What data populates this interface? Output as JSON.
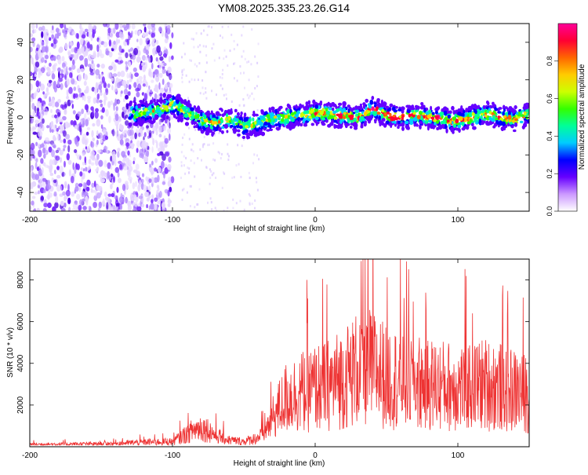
{
  "title": "YM08.2025.335.23.26.G14",
  "chart_data": [
    {
      "type": "heatmap",
      "xlabel": "Height of straight line (km)",
      "ylabel": "Frequency (Hz)",
      "xlim": [
        -200,
        150
      ],
      "ylim": [
        -50,
        50
      ],
      "xticks": [
        -200,
        -100,
        0,
        100
      ],
      "yticks": [
        -40,
        -20,
        0,
        20,
        40
      ],
      "colorbar": {
        "label": "Normalized spectral amplitude",
        "range": [
          0,
          1
        ],
        "ticks": [
          "0.0",
          "0.2",
          "0.4",
          "0.6",
          "0.8"
        ],
        "colors": [
          "#ffffff",
          "#cc99ff",
          "#6600ff",
          "#0000ff",
          "#00ccff",
          "#00ff99",
          "#33ff00",
          "#ccff00",
          "#ffcc00",
          "#ff6600",
          "#ff0033",
          "#ff0099"
        ]
      },
      "ridge": {
        "x": [
          -125,
          -110,
          -100,
          -90,
          -80,
          -70,
          -60,
          -50,
          -40,
          -30,
          -20,
          -10,
          0,
          10,
          20,
          30,
          40,
          50,
          60,
          70,
          80,
          90,
          100,
          110,
          120,
          130,
          140,
          150
        ],
        "y": [
          2,
          4,
          7,
          3,
          -2,
          -3,
          -1,
          -5,
          -3,
          -1,
          0,
          1,
          2,
          2,
          1,
          0,
          5,
          1,
          0,
          1,
          0,
          -1,
          -2,
          0,
          2,
          0,
          -1,
          2
        ]
      }
    },
    {
      "type": "line",
      "xlabel": "Height of straight line (km)",
      "ylabel": "SNR (10 * v/v)",
      "xlim": [
        -200,
        150
      ],
      "ylim": [
        0,
        9000
      ],
      "xticks": [
        -200,
        -100,
        0,
        100
      ],
      "yticks": [
        2000,
        4000,
        6000,
        8000
      ],
      "color": "#ee3333",
      "envelope": {
        "x": [
          -200,
          -150,
          -130,
          -120,
          -100,
          -95,
          -90,
          -85,
          -80,
          -75,
          -70,
          -60,
          -50,
          -40,
          -35,
          -30,
          -25,
          -20,
          -10,
          0,
          10,
          20,
          30,
          40,
          50,
          60,
          70,
          80,
          90,
          100,
          110,
          120,
          130,
          140,
          150
        ],
        "y": [
          180,
          220,
          300,
          350,
          400,
          700,
          1000,
          1300,
          1500,
          1300,
          900,
          500,
          400,
          700,
          1200,
          2200,
          3000,
          3800,
          4200,
          4500,
          4800,
          5300,
          6000,
          6200,
          5400,
          5200,
          5000,
          4800,
          4700,
          4600,
          4700,
          4800,
          4600,
          4300,
          4100
        ]
      }
    }
  ]
}
